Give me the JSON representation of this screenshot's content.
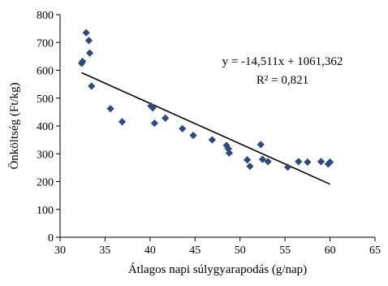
{
  "chart_data": {
    "type": "scatter",
    "title": "",
    "xlabel": "Átlagos napi súlygyarapodás (g/nap)",
    "ylabel": "Önköltség (Ft/kg)",
    "xlim": [
      30,
      65
    ],
    "ylim": [
      0,
      800
    ],
    "x_ticks": [
      30,
      35,
      40,
      45,
      50,
      55,
      60,
      65
    ],
    "y_ticks": [
      0,
      100,
      200,
      300,
      400,
      500,
      600,
      700,
      800
    ],
    "x_tick_labels": [
      "30",
      "35",
      "40",
      "45",
      "50",
      "55",
      "60",
      "65"
    ],
    "y_tick_labels": [
      "0",
      "100",
      "200",
      "300",
      "400",
      "500",
      "600",
      "700",
      "800"
    ],
    "grid": false,
    "marker": "diamond",
    "marker_color": "#2E4A7D",
    "trendline_color": "#000000",
    "series": [
      {
        "points": [
          [
            32.4,
            625
          ],
          [
            32.5,
            632
          ],
          [
            32.9,
            735
          ],
          [
            33.2,
            707
          ],
          [
            33.3,
            662
          ],
          [
            33.5,
            543
          ],
          [
            35.6,
            462
          ],
          [
            36.9,
            415
          ],
          [
            40.1,
            472
          ],
          [
            40.3,
            465
          ],
          [
            40.5,
            410
          ],
          [
            41.7,
            428
          ],
          [
            43.6,
            390
          ],
          [
            44.8,
            366
          ],
          [
            46.9,
            350
          ],
          [
            48.5,
            330
          ],
          [
            48.7,
            318
          ],
          [
            48.8,
            303
          ],
          [
            50.8,
            278
          ],
          [
            51.1,
            255
          ],
          [
            52.3,
            333
          ],
          [
            52.5,
            280
          ],
          [
            53.1,
            272
          ],
          [
            55.3,
            252
          ],
          [
            56.5,
            272
          ],
          [
            57.5,
            270
          ],
          [
            59.0,
            272
          ],
          [
            59.8,
            263
          ],
          [
            60.0,
            270
          ]
        ]
      }
    ],
    "trendline": {
      "type": "linear",
      "slope": -14.511,
      "intercept": 1061.362,
      "x_range": [
        32.4,
        60.0
      ],
      "equation_label": "y = -14,511x + 1061,362",
      "r2_label": "R² = 0,821"
    }
  }
}
